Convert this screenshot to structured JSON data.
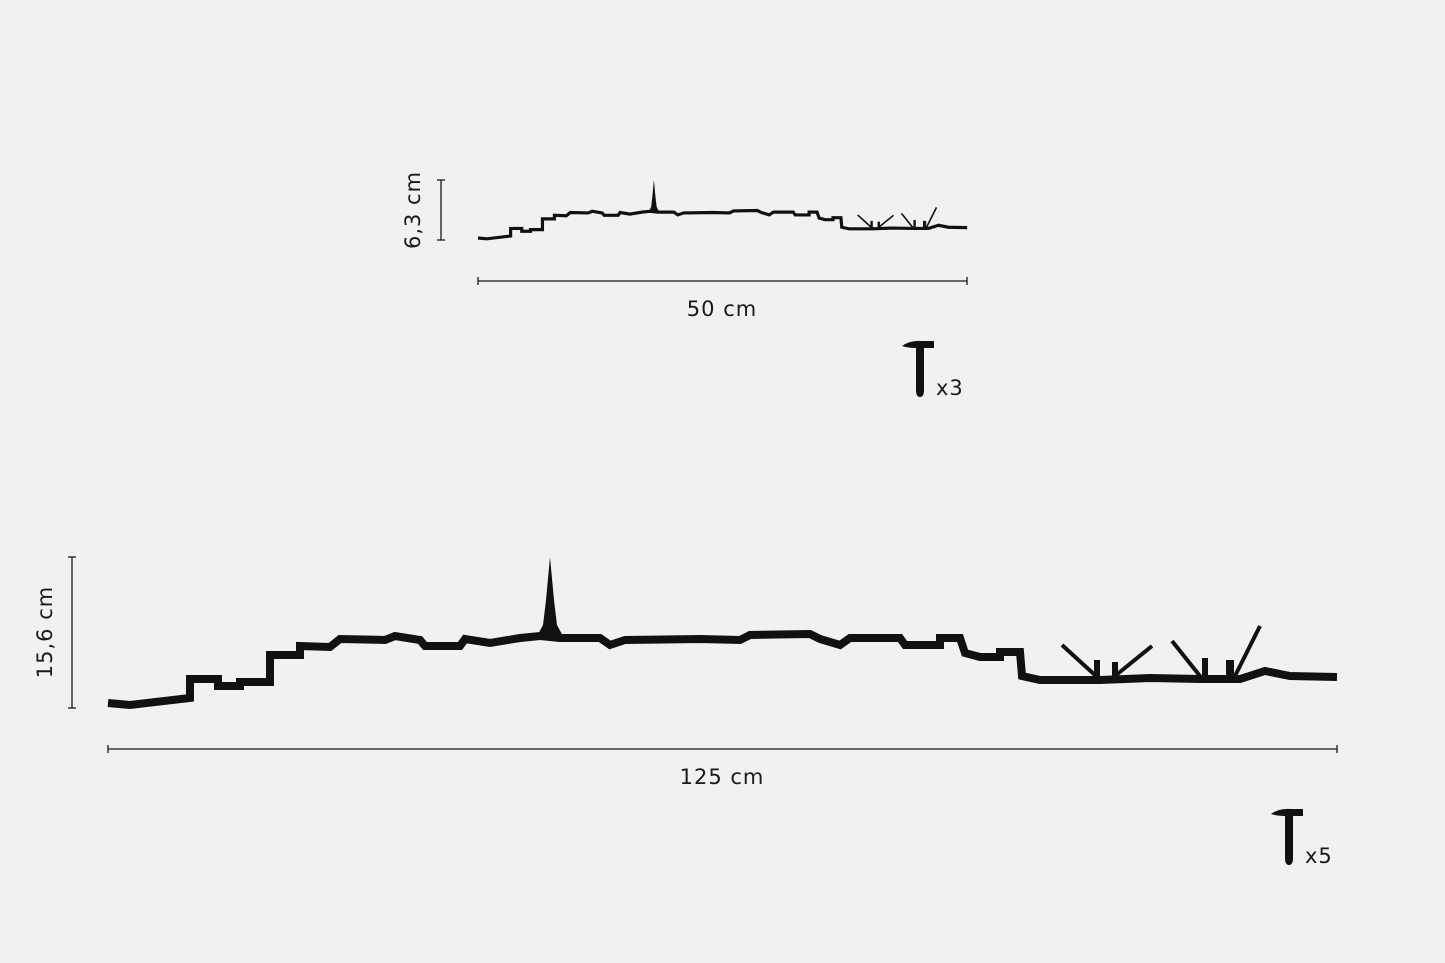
{
  "small": {
    "height": "6,3 cm",
    "width": "50 cm",
    "nails": "x3"
  },
  "large": {
    "height": "15,6 cm",
    "width": "125 cm",
    "nails": "x5"
  }
}
